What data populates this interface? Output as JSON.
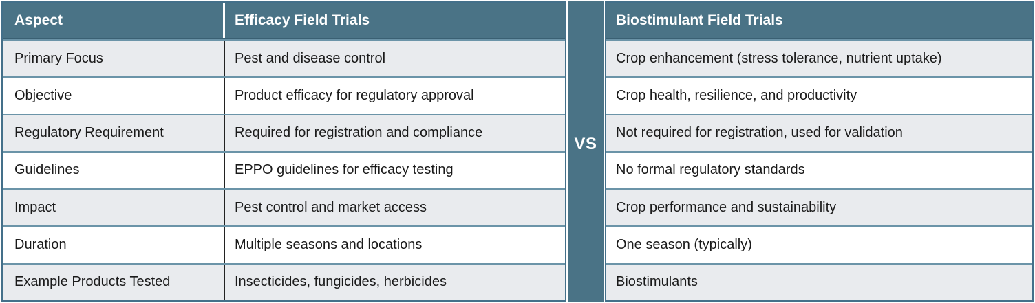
{
  "headers": {
    "aspect": "Aspect",
    "efficacy": "Efficacy Field Trials",
    "biostimulant": "Biostimulant Field Trials"
  },
  "divider_label": "VS",
  "rows": [
    {
      "aspect": "Primary Focus",
      "efficacy": "Pest and disease control",
      "biostimulant": "Crop enhancement (stress tolerance, nutrient uptake)"
    },
    {
      "aspect": "Objective",
      "efficacy": "Product efficacy for regulatory approval",
      "biostimulant": "Crop health, resilience, and productivity"
    },
    {
      "aspect": "Regulatory Requirement",
      "efficacy": "Required for registration and compliance",
      "biostimulant": "Not required for registration, used for validation"
    },
    {
      "aspect": "Guidelines",
      "efficacy": "EPPO guidelines for efficacy testing",
      "biostimulant": "No formal regulatory standards"
    },
    {
      "aspect": "Impact",
      "efficacy": "Pest control and market access",
      "biostimulant": "Crop performance and sustainability"
    },
    {
      "aspect": "Duration",
      "efficacy": "Multiple seasons and locations",
      "biostimulant": "One season (typically)"
    },
    {
      "aspect": "Example Products Tested",
      "efficacy": "Insecticides, fungicides, herbicides",
      "biostimulant": "Biostimulants"
    }
  ],
  "colors": {
    "header_bg": "#4a7386",
    "divider_bg": "#4a7386",
    "row_alt_bg": "#e9ebee",
    "row_bg": "#ffffff",
    "row_separator": "#6b94a8",
    "outer_border": "#44708a",
    "column_divider": "#222222",
    "header_text": "#ffffff",
    "body_text": "#1a1a1a"
  }
}
